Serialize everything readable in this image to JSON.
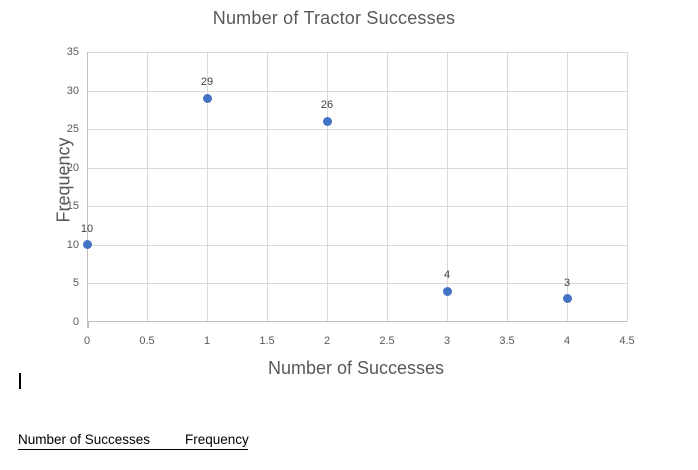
{
  "chart_data": {
    "type": "scatter",
    "title": "Number of Tractor Successes",
    "xlabel": "Number of Successes",
    "ylabel": "Frequency",
    "x": [
      0,
      1,
      2,
      3,
      4
    ],
    "y": [
      10,
      29,
      26,
      4,
      3
    ],
    "point_labels": [
      "10",
      "29",
      "26",
      "4",
      "3"
    ],
    "xlim": [
      0,
      4.5
    ],
    "ylim": [
      0,
      35
    ],
    "x_ticks": [
      0,
      0.5,
      1,
      1.5,
      2,
      2.5,
      3,
      3.5,
      4,
      4.5
    ],
    "x_tick_labels": [
      "0",
      "0.5",
      "1",
      "1.5",
      "2",
      "2.5",
      "3",
      "3.5",
      "4",
      "4.5"
    ],
    "y_ticks": [
      0,
      5,
      10,
      15,
      20,
      25,
      30,
      35
    ],
    "y_tick_labels": [
      "0",
      "5",
      "10",
      "15",
      "20",
      "25",
      "30",
      "35"
    ],
    "grid": true,
    "legend": false,
    "marker_color": "#4472C4"
  },
  "table": {
    "headers": [
      "Number of Successes",
      "Frequency"
    ]
  },
  "colors": {
    "marker": "#4472C4",
    "gridline": "#D9D9D9",
    "axis_line": "#BFBFBF",
    "chart_text": "#595959",
    "data_label_text": "#404040",
    "document_text": "#000000",
    "background": "#FFFFFF"
  }
}
